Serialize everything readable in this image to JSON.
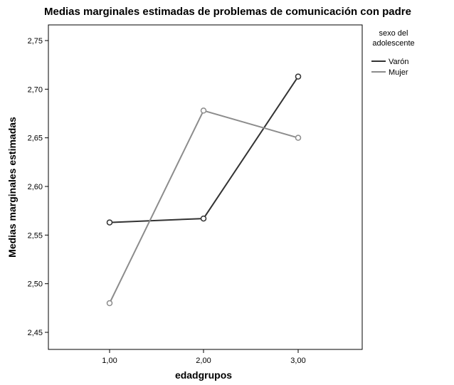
{
  "chart_data": {
    "type": "line",
    "title": "Medias marginales estimadas de problemas de comunicación con padre",
    "xlabel": "edadgrupos",
    "ylabel": "Medias marginales estimadas",
    "categories": [
      "1,00",
      "2,00",
      "3,00"
    ],
    "ylim": [
      2.43,
      2.77
    ],
    "yticks": [
      "2,45",
      "2,50",
      "2,55",
      "2,60",
      "2,65",
      "2,70",
      "2,75"
    ],
    "grid": false,
    "legend": {
      "title_lines": [
        "sexo del",
        "adolescente"
      ],
      "position": "right"
    },
    "series": [
      {
        "name": "Varón",
        "color": "#333333",
        "values": [
          2.563,
          2.567,
          2.713
        ]
      },
      {
        "name": "Mujer",
        "color": "#8c8c8c",
        "values": [
          2.48,
          2.678,
          2.65
        ]
      }
    ]
  }
}
